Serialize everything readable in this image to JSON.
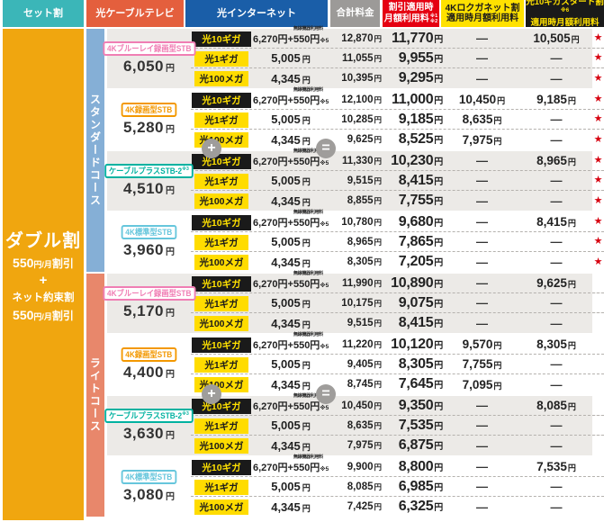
{
  "header": {
    "set": "セット割",
    "cable": "光ケーブルテレビ",
    "internet": "光インターネット",
    "total": "合計料金",
    "discount_l1": "割引適用時",
    "discount_l2": "月額利用料",
    "discount_note1": "※1",
    "discount_note2": "※2",
    "fourk_l1": "4Kロクガネット割",
    "fourk_l2": "適用時月額利用料",
    "tengiga_l1": "光10ギガスタート割",
    "tengiga_note": "※6",
    "tengiga_l2": "適用時月額利用料"
  },
  "set_discount": {
    "title": "ダブル割",
    "d1_amount": "550",
    "d1_unit": "円/月",
    "d1_suffix": "割引",
    "plus": "+",
    "d2_title": "ネット約束割",
    "d2_amount": "550",
    "d2_unit": "円/月",
    "d2_suffix": "割引"
  },
  "icons": {
    "plus": "+",
    "equals": "=",
    "star": "★"
  },
  "units": {
    "yen": "円"
  },
  "net_price_10g": {
    "pre": "6,270円+",
    "main": "550円",
    "tiny": "無線機器利用料",
    "note": "※5"
  },
  "colors": {
    "header_set": "#3BB6B8",
    "header_cable": "#E45F3D",
    "header_internet": "#1A5EA8",
    "header_total": "#9C9A98",
    "header_discount": "#E50011",
    "header_4k": "#FFE100",
    "header_10g": "#1A1A1A",
    "set_col": "#F0A60F",
    "standard_bar": "#85AFD6",
    "light_bar": "#E8876B",
    "row_shade": "#ECEAE7",
    "star": "#D7000F"
  },
  "courses": [
    {
      "name": "スタンダードコース",
      "bar_color": "#85AFD6",
      "groups": [
        {
          "stb": "4Kブルーレイ録画型STB",
          "stb_note": "",
          "color": "#F07EB4",
          "price": "6,050",
          "rows": [
            {
              "speed": "光10ギガ",
              "dark": true,
              "net": "10g",
              "total": "12,870",
              "disc": "11,770",
              "fourk": "—",
              "teng": "10,505",
              "star": true
            },
            {
              "speed": "光1ギガ",
              "dark": false,
              "net": "5,005",
              "total": "11,055",
              "disc": "9,955",
              "fourk": "—",
              "teng": "—",
              "star": true
            },
            {
              "speed": "光100メガ",
              "dark": false,
              "net": "4,345",
              "total": "10,395",
              "disc": "9,295",
              "fourk": "—",
              "teng": "—",
              "star": true
            }
          ]
        },
        {
          "stb": "4K録画型STB",
          "stb_note": "",
          "color": "#F39800",
          "price": "5,280",
          "rows": [
            {
              "speed": "光10ギガ",
              "dark": true,
              "net": "10g",
              "total": "12,100",
              "disc": "11,000",
              "fourk": "10,450",
              "teng": "9,185",
              "star": true
            },
            {
              "speed": "光1ギガ",
              "dark": false,
              "net": "5,005",
              "total": "10,285",
              "disc": "9,185",
              "fourk": "8,635",
              "teng": "—",
              "star": true
            },
            {
              "speed": "光100メガ",
              "dark": false,
              "net": "4,345",
              "total": "9,625",
              "disc": "8,525",
              "fourk": "7,975",
              "teng": "—",
              "star": true
            }
          ]
        },
        {
          "stb": "ケーブルプラスSTB-2",
          "stb_note": "※3",
          "color": "#00B2A0",
          "price": "4,510",
          "rows": [
            {
              "speed": "光10ギガ",
              "dark": true,
              "net": "10g",
              "total": "11,330",
              "disc": "10,230",
              "fourk": "—",
              "teng": "8,965",
              "star": true
            },
            {
              "speed": "光1ギガ",
              "dark": false,
              "net": "5,005",
              "total": "9,515",
              "disc": "8,415",
              "fourk": "—",
              "teng": "—",
              "star": true
            },
            {
              "speed": "光100メガ",
              "dark": false,
              "net": "4,345",
              "total": "8,855",
              "disc": "7,755",
              "fourk": "—",
              "teng": "—",
              "star": true
            }
          ]
        },
        {
          "stb": "4K標準型STB",
          "stb_note": "",
          "color": "#66C6DC",
          "price": "3,960",
          "rows": [
            {
              "speed": "光10ギガ",
              "dark": true,
              "net": "10g",
              "total": "10,780",
              "disc": "9,680",
              "fourk": "—",
              "teng": "8,415",
              "star": true
            },
            {
              "speed": "光1ギガ",
              "dark": false,
              "net": "5,005",
              "total": "8,965",
              "disc": "7,865",
              "fourk": "—",
              "teng": "—",
              "star": true
            },
            {
              "speed": "光100メガ",
              "dark": false,
              "net": "4,345",
              "total": "8,305",
              "disc": "7,205",
              "fourk": "—",
              "teng": "—",
              "star": true
            }
          ]
        }
      ]
    },
    {
      "name": "ライトコース",
      "bar_color": "#E8876B",
      "groups": [
        {
          "stb": "4Kブルーレイ録画型STB",
          "stb_note": "",
          "color": "#F07EB4",
          "price": "5,170",
          "rows": [
            {
              "speed": "光10ギガ",
              "dark": true,
              "net": "10g",
              "total": "11,990",
              "disc": "10,890",
              "fourk": "—",
              "teng": "9,625",
              "star": false
            },
            {
              "speed": "光1ギガ",
              "dark": false,
              "net": "5,005",
              "total": "10,175",
              "disc": "9,075",
              "fourk": "—",
              "teng": "—",
              "star": false
            },
            {
              "speed": "光100メガ",
              "dark": false,
              "net": "4,345",
              "total": "9,515",
              "disc": "8,415",
              "fourk": "—",
              "teng": "—",
              "star": false
            }
          ]
        },
        {
          "stb": "4K録画型STB",
          "stb_note": "",
          "color": "#F39800",
          "price": "4,400",
          "rows": [
            {
              "speed": "光10ギガ",
              "dark": true,
              "net": "10g",
              "total": "11,220",
              "disc": "10,120",
              "fourk": "9,570",
              "teng": "8,305",
              "star": false
            },
            {
              "speed": "光1ギガ",
              "dark": false,
              "net": "5,005",
              "total": "9,405",
              "disc": "8,305",
              "fourk": "7,755",
              "teng": "—",
              "star": false
            },
            {
              "speed": "光100メガ",
              "dark": false,
              "net": "4,345",
              "total": "8,745",
              "disc": "7,645",
              "fourk": "7,095",
              "teng": "—",
              "star": false
            }
          ]
        },
        {
          "stb": "ケーブルプラスSTB-2",
          "stb_note": "※3",
          "color": "#00B2A0",
          "price": "3,630",
          "rows": [
            {
              "speed": "光10ギガ",
              "dark": true,
              "net": "10g",
              "total": "10,450",
              "disc": "9,350",
              "fourk": "—",
              "teng": "8,085",
              "star": false
            },
            {
              "speed": "光1ギガ",
              "dark": false,
              "net": "5,005",
              "total": "8,635",
              "disc": "7,535",
              "fourk": "—",
              "teng": "—",
              "star": false
            },
            {
              "speed": "光100メガ",
              "dark": false,
              "net": "4,345",
              "total": "7,975",
              "disc": "6,875",
              "fourk": "—",
              "teng": "—",
              "star": false
            }
          ]
        },
        {
          "stb": "4K標準型STB",
          "stb_note": "",
          "color": "#66C6DC",
          "price": "3,080",
          "rows": [
            {
              "speed": "光10ギガ",
              "dark": true,
              "net": "10g",
              "total": "9,900",
              "disc": "8,800",
              "fourk": "—",
              "teng": "7,535",
              "star": false
            },
            {
              "speed": "光1ギガ",
              "dark": false,
              "net": "5,005",
              "total": "8,085",
              "disc": "6,985",
              "fourk": "—",
              "teng": "—",
              "star": false
            },
            {
              "speed": "光100メガ",
              "dark": false,
              "net": "4,345",
              "total": "7,425",
              "disc": "6,325",
              "fourk": "—",
              "teng": "—",
              "star": false
            }
          ]
        }
      ]
    }
  ]
}
